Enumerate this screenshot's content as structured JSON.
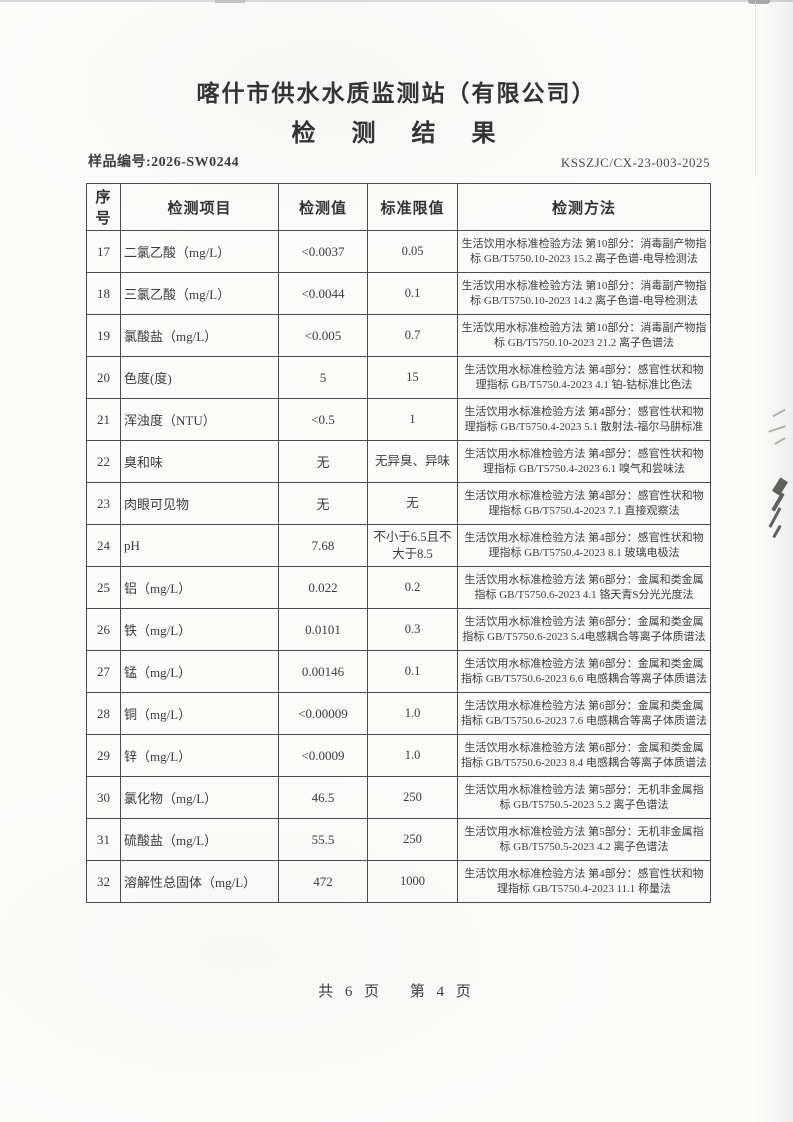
{
  "page": {
    "org_title": "喀什市供水水质监测站（有限公司）",
    "doc_title": "检　测　结　果",
    "sample_label": "样品编号:2026-SW0244",
    "doc_code": "KSSZJC/CX-23-003-2025",
    "footer": "共 6 页　 第 4 页"
  },
  "table": {
    "columns": [
      "序号",
      "检测项目",
      "检测值",
      "标准限值",
      "检测方法"
    ],
    "rows": [
      {
        "no": "17",
        "item": "二氯乙酸（mg/L）",
        "value": "<0.0037",
        "limit": "0.05",
        "method": "生活饮用水标准检验方法 第10部分：消毒副产物指标 GB/T5750.10-2023 15.2 离子色谱-电导检测法"
      },
      {
        "no": "18",
        "item": "三氯乙酸（mg/L）",
        "value": "<0.0044",
        "limit": "0.1",
        "method": "生活饮用水标准检验方法 第10部分：消毒副产物指标 GB/T5750.10-2023 14.2 离子色谱-电导检测法"
      },
      {
        "no": "19",
        "item": "氯酸盐（mg/L）",
        "value": "<0.005",
        "limit": "0.7",
        "method": "生活饮用水标准检验方法 第10部分：消毒副产物指标 GB/T5750.10-2023 21.2 离子色谱法"
      },
      {
        "no": "20",
        "item": "色度(度)",
        "value": "5",
        "limit": "15",
        "method": "生活饮用水标准检验方法 第4部分：感官性状和物理指标 GB/T5750.4-2023 4.1 铂-钴标准比色法"
      },
      {
        "no": "21",
        "item": "浑浊度（NTU）",
        "value": "<0.5",
        "limit": "1",
        "method": "生活饮用水标准检验方法 第4部分：感官性状和物理指标 GB/T5750.4-2023 5.1 散射法-福尔马肼标准"
      },
      {
        "no": "22",
        "item": "臭和味",
        "value": "无",
        "limit": "无异臭、异味",
        "method": "生活饮用水标准检验方法 第4部分：感官性状和物理指标 GB/T5750.4-2023 6.1 嗅气和尝味法"
      },
      {
        "no": "23",
        "item": "肉眼可见物",
        "value": "无",
        "limit": "无",
        "method": "生活饮用水标准检验方法 第4部分：感官性状和物理指标 GB/T5750.4-2023 7.1 直接观察法"
      },
      {
        "no": "24",
        "item": "pH",
        "value": "7.68",
        "limit": "不小于6.5且不大于8.5",
        "method": "生活饮用水标准检验方法 第4部分：感官性状和物理指标 GB/T5750.4-2023 8.1 玻璃电极法"
      },
      {
        "no": "25",
        "item": "铝（mg/L）",
        "value": "0.022",
        "limit": "0.2",
        "method": "生活饮用水标准检验方法 第6部分：金属和类金属指标 GB/T5750.6-2023 4.1 铬天青S分光光度法"
      },
      {
        "no": "26",
        "item": "铁（mg/L）",
        "value": "0.0101",
        "limit": "0.3",
        "method": "生活饮用水标准检验方法 第6部分：金属和类金属指标 GB/T5750.6-2023 5.4电感耦合等离子体质谱法"
      },
      {
        "no": "27",
        "item": "锰（mg/L）",
        "value": "0.00146",
        "limit": "0.1",
        "method": "生活饮用水标准检验方法 第6部分：金属和类金属指标 GB/T5750.6-2023 6.6 电感耦合等离子体质谱法"
      },
      {
        "no": "28",
        "item": "铜（mg/L）",
        "value": "<0.00009",
        "limit": "1.0",
        "method": "生活饮用水标准检验方法 第6部分：金属和类金属指标 GB/T5750.6-2023 7.6 电感耦合等离子体质谱法"
      },
      {
        "no": "29",
        "item": "锌（mg/L）",
        "value": "<0.0009",
        "limit": "1.0",
        "method": "生活饮用水标准检验方法 第6部分：金属和类金属指标 GB/T5750.6-2023 8.4 电感耦合等离子体质谱法"
      },
      {
        "no": "30",
        "item": "氯化物（mg/L）",
        "value": "46.5",
        "limit": "250",
        "method": "生活饮用水标准检验方法 第5部分：无机非金属指标 GB/T5750.5-2023 5.2 离子色谱法"
      },
      {
        "no": "31",
        "item": "硫酸盐（mg/L）",
        "value": "55.5",
        "limit": "250",
        "method": "生活饮用水标准检验方法 第5部分：无机非金属指标 GB/T5750.5-2023 4.2 离子色谱法"
      },
      {
        "no": "32",
        "item": "溶解性总固体（mg/L）",
        "value": "472",
        "limit": "1000",
        "method": "生活饮用水标准检验方法 第4部分：感官性状和物理指标 GB/T5750.4-2023 11.1 称量法"
      }
    ]
  }
}
